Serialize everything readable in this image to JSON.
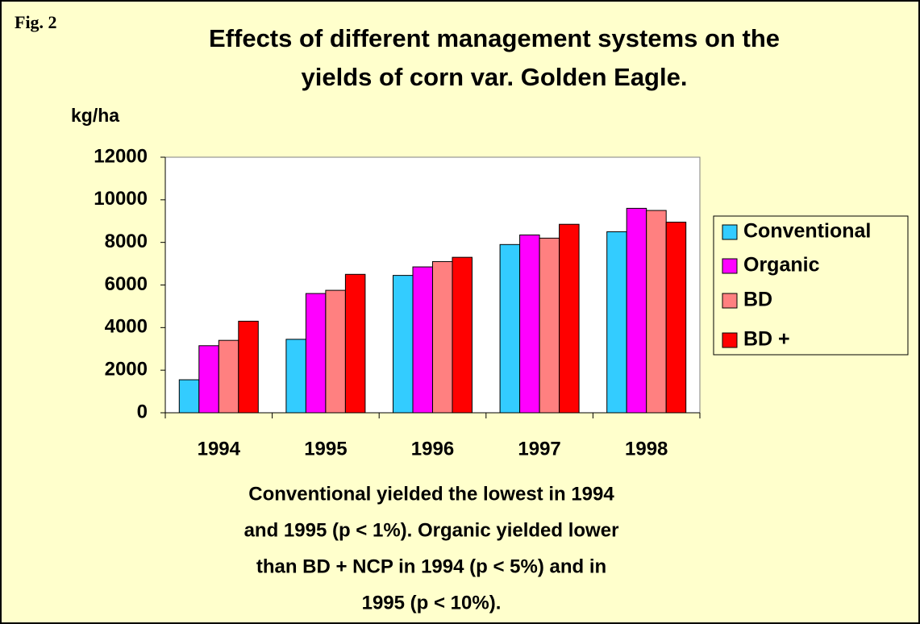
{
  "chart_data": {
    "type": "bar",
    "figure_label": "Fig. 2",
    "title": [
      "Effects of different management systems on the",
      "yields of corn var. Golden Eagle."
    ],
    "y_label": "kg/ha",
    "categories": [
      "1994",
      "1995",
      "1996",
      "1997",
      "1998"
    ],
    "series": [
      {
        "name": "Conventional",
        "color": "#33ccff",
        "values": [
          1550,
          3450,
          6450,
          7900,
          8500
        ]
      },
      {
        "name": "Organic",
        "color": "#ff00ff",
        "values": [
          3150,
          5600,
          6850,
          8350,
          9600
        ]
      },
      {
        "name": "BD",
        "color": "#ff8080",
        "values": [
          3400,
          5750,
          7100,
          8200,
          9500
        ]
      },
      {
        "name": "BD +",
        "color": "#ff0000",
        "values": [
          4300,
          6500,
          7300,
          8850,
          8950
        ]
      }
    ],
    "ylim": [
      0,
      12000
    ],
    "yticks": [
      0,
      2000,
      4000,
      6000,
      8000,
      10000,
      12000
    ],
    "grid": false,
    "legend": "right",
    "annotation": [
      "Conventional yielded the lowest in 1994",
      "and 1995 (p < 1%).  Organic yielded lower",
      "than BD + NCP in 1994 (p < 5%) and in",
      "1995 (p < 10%)."
    ]
  }
}
